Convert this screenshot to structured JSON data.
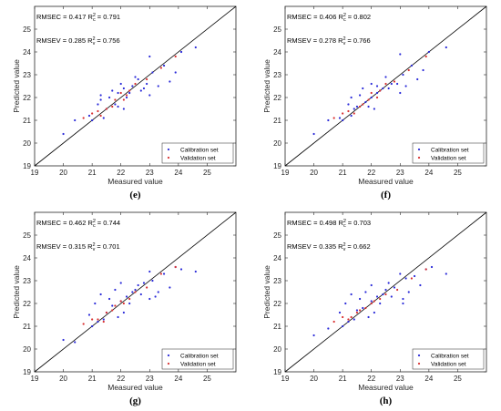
{
  "colors": {
    "calibration": "#2b2bd9",
    "validation": "#d93030",
    "identity_line": "#000000"
  },
  "chart_data": [
    {
      "panel_label": "(e)",
      "type": "scatter",
      "xlabel": "Measured value",
      "ylabel": "Predicted value",
      "xlim": [
        19,
        26
      ],
      "ylim": [
        19,
        26
      ],
      "xticks": [
        "19",
        "20",
        "21",
        "22",
        "23",
        "24",
        "25"
      ],
      "yticks": [
        "19",
        "20",
        "21",
        "22",
        "23",
        "24",
        "25"
      ],
      "grid": false,
      "legend_placement": "bottom-right",
      "reference_line": "y = x",
      "stats": {
        "rmsec": "0.417",
        "r2c": "0.791",
        "rmsev": "0.285",
        "r2v": "0.756"
      },
      "series": [
        {
          "name": "Calibration set",
          "x": [
            20.0,
            20.4,
            20.9,
            21.0,
            21.2,
            21.3,
            21.3,
            21.5,
            21.6,
            21.8,
            21.9,
            21.9,
            22.0,
            22.1,
            22.1,
            22.2,
            22.3,
            22.4,
            22.5,
            22.7,
            22.8,
            22.9,
            23.0,
            23.1,
            23.3,
            23.5,
            23.7,
            23.9,
            24.1,
            24.6,
            21.4,
            21.7,
            22.6,
            23.0
          ],
          "y": [
            20.4,
            21.0,
            21.2,
            21.0,
            21.7,
            21.9,
            22.1,
            21.5,
            22.0,
            21.7,
            21.6,
            22.2,
            22.6,
            21.5,
            22.4,
            22.0,
            22.2,
            22.5,
            22.9,
            22.3,
            22.4,
            22.6,
            23.8,
            23.1,
            22.5,
            23.4,
            22.7,
            23.1,
            24.0,
            24.2,
            21.1,
            22.3,
            22.8,
            22.1
          ]
        },
        {
          "name": "Validation set",
          "x": [
            20.7,
            21.0,
            21.2,
            21.3,
            21.5,
            21.7,
            21.8,
            22.0,
            22.1,
            22.2,
            22.3,
            22.5,
            22.9,
            23.4,
            23.9
          ],
          "y": [
            21.1,
            21.3,
            21.4,
            21.2,
            21.5,
            21.6,
            21.9,
            22.2,
            21.9,
            22.1,
            22.3,
            22.6,
            22.8,
            23.3,
            23.8
          ]
        }
      ]
    },
    {
      "panel_label": "(f)",
      "type": "scatter",
      "xlabel": "Measured value",
      "ylabel": "Predicted value",
      "xlim": [
        19,
        26
      ],
      "ylim": [
        19,
        26
      ],
      "xticks": [
        "19",
        "20",
        "21",
        "22",
        "23",
        "24",
        "25"
      ],
      "yticks": [
        "19",
        "20",
        "21",
        "22",
        "23",
        "24",
        "25"
      ],
      "grid": false,
      "legend_placement": "bottom-right",
      "reference_line": "y = x",
      "stats": {
        "rmsec": "0.406",
        "r2c": "0.802",
        "rmsev": "0.278",
        "r2v": "0.766"
      },
      "series": [
        {
          "name": "Calibration set",
          "x": [
            20.0,
            20.5,
            20.9,
            21.0,
            21.2,
            21.3,
            21.4,
            21.5,
            21.6,
            21.8,
            21.9,
            22.0,
            22.0,
            22.1,
            22.2,
            22.2,
            22.3,
            22.5,
            22.6,
            22.7,
            22.9,
            23.0,
            23.1,
            23.2,
            23.4,
            23.6,
            23.8,
            24.0,
            24.6,
            21.3,
            21.7,
            22.4,
            23.0
          ],
          "y": [
            20.4,
            21.0,
            21.1,
            21.0,
            21.7,
            22.0,
            21.5,
            21.6,
            22.1,
            21.8,
            21.6,
            22.6,
            22.0,
            21.5,
            22.2,
            22.5,
            22.3,
            22.9,
            22.4,
            22.6,
            22.6,
            23.9,
            23.0,
            22.5,
            23.4,
            22.8,
            23.2,
            24.0,
            24.2,
            21.2,
            22.4,
            22.4,
            22.2
          ]
        },
        {
          "name": "Validation set",
          "x": [
            20.7,
            21.0,
            21.2,
            21.4,
            21.6,
            21.7,
            21.9,
            22.0,
            22.2,
            22.3,
            22.5,
            22.8,
            23.3,
            23.9
          ],
          "y": [
            21.1,
            21.3,
            21.4,
            21.3,
            21.6,
            21.7,
            21.9,
            22.2,
            22.0,
            22.3,
            22.6,
            22.7,
            23.2,
            23.8
          ]
        }
      ]
    },
    {
      "panel_label": "(g)",
      "type": "scatter",
      "xlabel": "Measured value",
      "ylabel": "Predicted value",
      "xlim": [
        19,
        26
      ],
      "ylim": [
        19,
        26
      ],
      "xticks": [
        "19",
        "20",
        "21",
        "22",
        "23",
        "24",
        "25"
      ],
      "yticks": [
        "19",
        "20",
        "21",
        "22",
        "23",
        "24",
        "25"
      ],
      "grid": false,
      "legend_placement": "bottom-right",
      "reference_line": "y = x",
      "stats": {
        "rmsec": "0.462",
        "r2c": "0.744",
        "rmsev": "0.315",
        "r2v": "0.701"
      },
      "series": [
        {
          "name": "Calibration set",
          "x": [
            20.0,
            20.4,
            20.9,
            21.0,
            21.1,
            21.3,
            21.4,
            21.5,
            21.6,
            21.7,
            21.9,
            22.0,
            22.0,
            22.1,
            22.2,
            22.3,
            22.4,
            22.5,
            22.7,
            22.8,
            23.0,
            23.0,
            23.1,
            23.3,
            23.5,
            23.7,
            23.9,
            24.1,
            24.6,
            21.2,
            21.8,
            22.6,
            23.2
          ],
          "y": [
            20.4,
            20.3,
            21.5,
            21.0,
            22.0,
            22.4,
            21.3,
            21.6,
            22.2,
            21.9,
            21.4,
            22.1,
            22.9,
            21.6,
            22.3,
            22.0,
            22.5,
            22.6,
            22.4,
            22.9,
            23.4,
            22.2,
            23.0,
            22.5,
            23.3,
            22.7,
            23.6,
            23.5,
            23.4,
            21.2,
            22.6,
            22.8,
            22.3
          ]
        },
        {
          "name": "Validation set",
          "x": [
            20.7,
            21.0,
            21.2,
            21.4,
            21.5,
            21.7,
            21.8,
            22.0,
            22.1,
            22.3,
            22.5,
            22.9,
            23.4,
            23.9
          ],
          "y": [
            21.1,
            21.3,
            21.3,
            21.2,
            21.6,
            21.7,
            21.9,
            22.1,
            22.0,
            22.2,
            22.5,
            22.7,
            23.3,
            23.6
          ]
        }
      ]
    },
    {
      "panel_label": "(h)",
      "type": "scatter",
      "xlabel": "Measured value",
      "ylabel": "Predicted value",
      "xlim": [
        19,
        26
      ],
      "ylim": [
        19,
        26
      ],
      "xticks": [
        "19",
        "20",
        "21",
        "22",
        "23",
        "24",
        "25"
      ],
      "yticks": [
        "19",
        "20",
        "21",
        "22",
        "23",
        "24",
        "25"
      ],
      "grid": false,
      "legend_placement": "bottom-right",
      "reference_line": "y = x",
      "stats": {
        "rmsec": "0.498",
        "r2c": "0.703",
        "rmsev": "0.335",
        "r2v": "0.662"
      },
      "series": [
        {
          "name": "Calibration set",
          "x": [
            20.0,
            20.5,
            20.9,
            21.0,
            21.1,
            21.3,
            21.4,
            21.5,
            21.6,
            21.7,
            21.9,
            22.0,
            22.0,
            22.1,
            22.2,
            22.3,
            22.4,
            22.5,
            22.7,
            22.8,
            23.0,
            23.1,
            23.2,
            23.3,
            23.5,
            23.7,
            23.9,
            24.1,
            24.6,
            21.2,
            21.8,
            22.6,
            23.1
          ],
          "y": [
            20.6,
            20.9,
            21.6,
            21.0,
            22.0,
            22.4,
            21.3,
            21.7,
            22.2,
            21.8,
            21.4,
            22.1,
            22.8,
            21.6,
            22.3,
            22.0,
            22.4,
            22.6,
            22.3,
            22.7,
            23.3,
            22.2,
            23.1,
            22.5,
            23.2,
            22.8,
            23.5,
            23.6,
            23.3,
            21.2,
            22.5,
            22.9,
            22.0
          ]
        },
        {
          "name": "Validation set",
          "x": [
            20.7,
            21.0,
            21.2,
            21.3,
            21.5,
            21.6,
            21.8,
            22.0,
            22.1,
            22.3,
            22.5,
            22.9,
            23.4,
            23.9
          ],
          "y": [
            21.2,
            21.4,
            21.3,
            21.4,
            21.6,
            21.7,
            21.8,
            22.0,
            22.1,
            22.2,
            22.4,
            22.6,
            23.1,
            23.5
          ]
        }
      ]
    }
  ]
}
